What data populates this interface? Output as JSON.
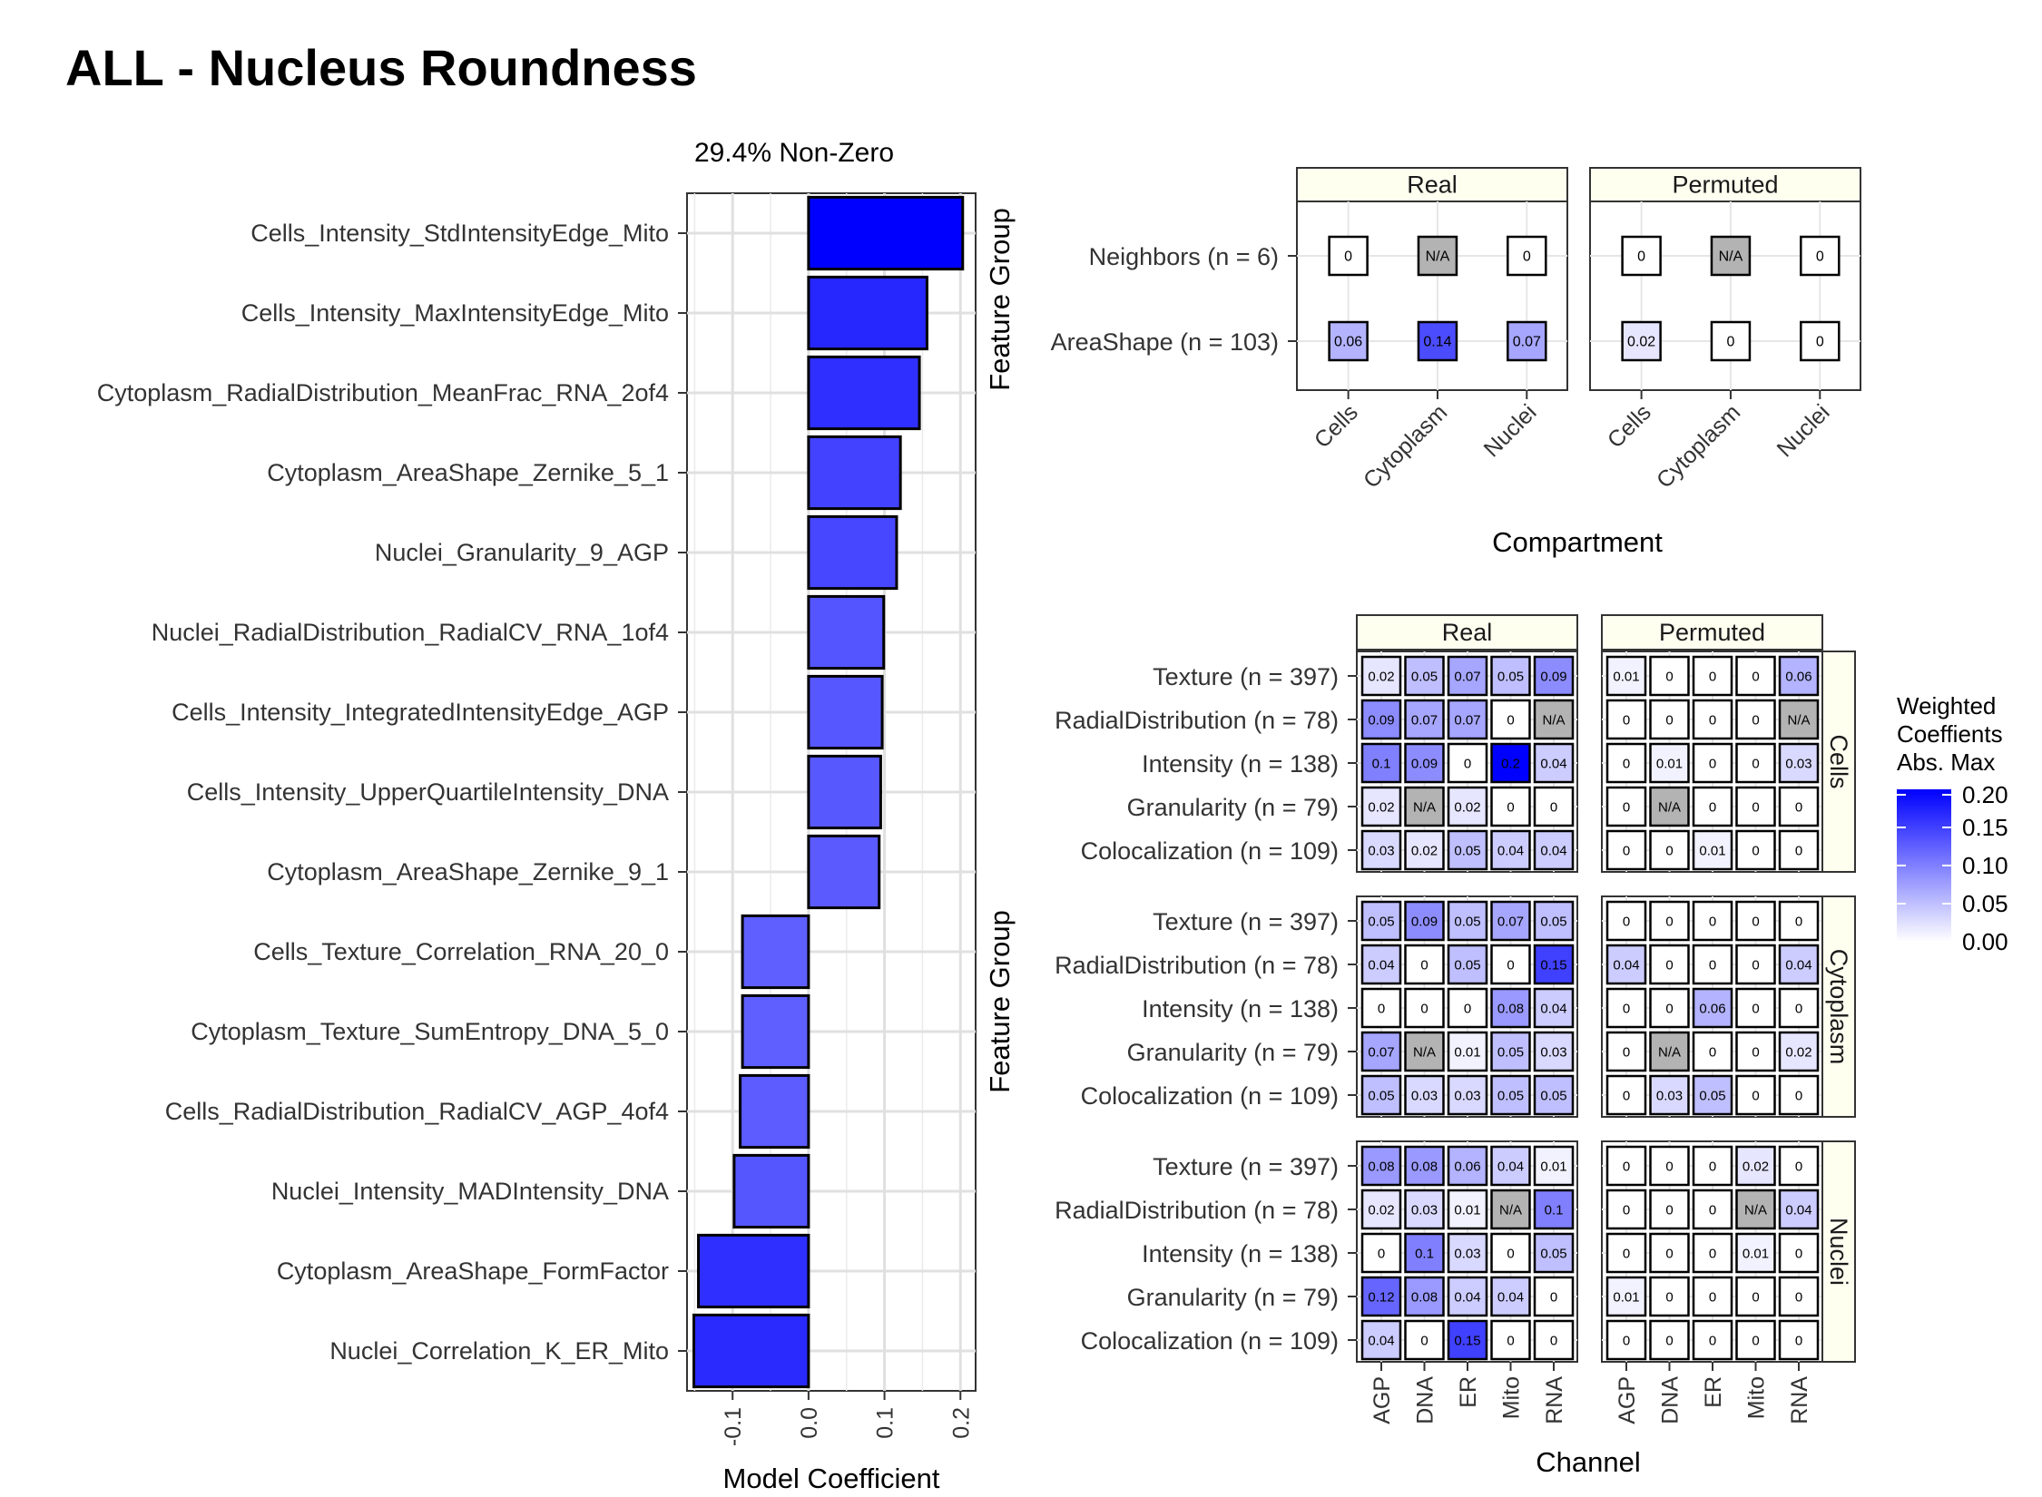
{
  "title": "ALL - Nucleus Roundness",
  "chart_data": [
    {
      "type": "bar",
      "orientation": "horizontal",
      "title": "29.4% Non-Zero",
      "xlabel": "Model Coefficient",
      "ylabel": "",
      "xlim": [
        -0.16,
        0.22
      ],
      "xticks": [
        "-0.1",
        "0.0",
        "0.1",
        "0.2"
      ],
      "grid": true,
      "categories": [
        "Cells_Intensity_StdIntensityEdge_Mito",
        "Cells_Intensity_MaxIntensityEdge_Mito",
        "Cytoplasm_RadialDistribution_MeanFrac_RNA_2of4",
        "Cytoplasm_AreaShape_Zernike_5_1",
        "Nuclei_Granularity_9_AGP",
        "Nuclei_RadialDistribution_RadialCV_RNA_1of4",
        "Cells_Intensity_IntegratedIntensityEdge_AGP",
        "Cells_Intensity_UpperQuartileIntensity_DNA",
        "Cytoplasm_AreaShape_Zernike_9_1",
        "Cells_Texture_Correlation_RNA_20_0",
        "Cytoplasm_Texture_SumEntropy_DNA_5_0",
        "Cells_RadialDistribution_RadialCV_AGP_4of4",
        "Nuclei_Intensity_MADIntensity_DNA",
        "Cytoplasm_AreaShape_FormFactor",
        "Nuclei_Correlation_K_ER_Mito"
      ],
      "values": [
        0.203,
        0.156,
        0.146,
        0.121,
        0.116,
        0.099,
        0.097,
        0.095,
        0.093,
        -0.087,
        -0.087,
        -0.09,
        -0.098,
        -0.145,
        -0.151
      ]
    },
    {
      "type": "heatmap",
      "ylabel": "Feature Group",
      "xlabel": "Compartment",
      "columns": [
        "Cells",
        "Cytoplasm",
        "Nuclei"
      ],
      "rows": [
        "Neighbors (n = 6)",
        "AreaShape (n = 103)"
      ],
      "facets": [
        {
          "name": "Real",
          "values": [
            [
              "0",
              "N/A",
              "0"
            ],
            [
              "0.06",
              "0.14",
              "0.07"
            ]
          ]
        },
        {
          "name": "Permuted",
          "values": [
            [
              "0",
              "N/A",
              "0"
            ],
            [
              "0.02",
              "0",
              "0"
            ]
          ]
        }
      ]
    },
    {
      "type": "heatmap",
      "ylabel": "Feature Group",
      "xlabel": "Channel",
      "columns": [
        "AGP",
        "DNA",
        "ER",
        "Mito",
        "RNA"
      ],
      "rows": [
        "Texture (n = 397)",
        "RadialDistribution (n = 78)",
        "Intensity (n = 138)",
        "Granularity (n = 79)",
        "Colocalization (n = 109)"
      ],
      "col_facets": [
        "Real",
        "Permuted"
      ],
      "row_facets": [
        "Cells",
        "Cytoplasm",
        "Nuclei"
      ],
      "values": {
        "Cells": {
          "Real": [
            [
              "0.02",
              "0.05",
              "0.07",
              "0.05",
              "0.09"
            ],
            [
              "0.09",
              "0.07",
              "0.07",
              "0",
              "N/A"
            ],
            [
              "0.1",
              "0.09",
              "0",
              "0.2",
              "0.04"
            ],
            [
              "0.02",
              "N/A",
              "0.02",
              "0",
              "0"
            ],
            [
              "0.03",
              "0.02",
              "0.05",
              "0.04",
              "0.04"
            ]
          ],
          "Permuted": [
            [
              "0.01",
              "0",
              "0",
              "0",
              "0.06"
            ],
            [
              "0",
              "0",
              "0",
              "0",
              "N/A"
            ],
            [
              "0",
              "0.01",
              "0",
              "0",
              "0.03"
            ],
            [
              "0",
              "N/A",
              "0",
              "0",
              "0"
            ],
            [
              "0",
              "0",
              "0.01",
              "0",
              "0"
            ]
          ]
        },
        "Cytoplasm": {
          "Real": [
            [
              "0.05",
              "0.09",
              "0.05",
              "0.07",
              "0.05"
            ],
            [
              "0.04",
              "0",
              "0.05",
              "0",
              "0.15"
            ],
            [
              "0",
              "0",
              "0",
              "0.08",
              "0.04"
            ],
            [
              "0.07",
              "N/A",
              "0.01",
              "0.05",
              "0.03"
            ],
            [
              "0.05",
              "0.03",
              "0.03",
              "0.05",
              "0.05"
            ]
          ],
          "Permuted": [
            [
              "0",
              "0",
              "0",
              "0",
              "0"
            ],
            [
              "0.04",
              "0",
              "0",
              "0",
              "0.04"
            ],
            [
              "0",
              "0",
              "0.06",
              "0",
              "0"
            ],
            [
              "0",
              "N/A",
              "0",
              "0",
              "0.02"
            ],
            [
              "0",
              "0.03",
              "0.05",
              "0",
              "0"
            ]
          ]
        },
        "Nuclei": {
          "Real": [
            [
              "0.08",
              "0.08",
              "0.06",
              "0.04",
              "0.01"
            ],
            [
              "0.02",
              "0.03",
              "0.01",
              "N/A",
              "0.1"
            ],
            [
              "0",
              "0.1",
              "0.03",
              "0",
              "0.05"
            ],
            [
              "0.12",
              "0.08",
              "0.04",
              "0.04",
              "0"
            ],
            [
              "0.04",
              "0",
              "0.15",
              "0",
              "0"
            ]
          ],
          "Permuted": [
            [
              "0",
              "0",
              "0",
              "0.02",
              "0"
            ],
            [
              "0",
              "0",
              "0",
              "N/A",
              "0.04"
            ],
            [
              "0",
              "0",
              "0",
              "0.01",
              "0"
            ],
            [
              "0.01",
              "0",
              "0",
              "0",
              "0"
            ],
            [
              "0",
              "0",
              "0",
              "0",
              "0"
            ]
          ]
        }
      }
    }
  ],
  "legend": {
    "title": [
      "Weighted",
      "Coeffients",
      "Abs. Max"
    ],
    "ticks": [
      "0.20",
      "0.15",
      "0.10",
      "0.05",
      "0.00"
    ],
    "colors": {
      "low": "#ffffff",
      "high": "#0000ff",
      "na": "#b3b3b3"
    }
  }
}
